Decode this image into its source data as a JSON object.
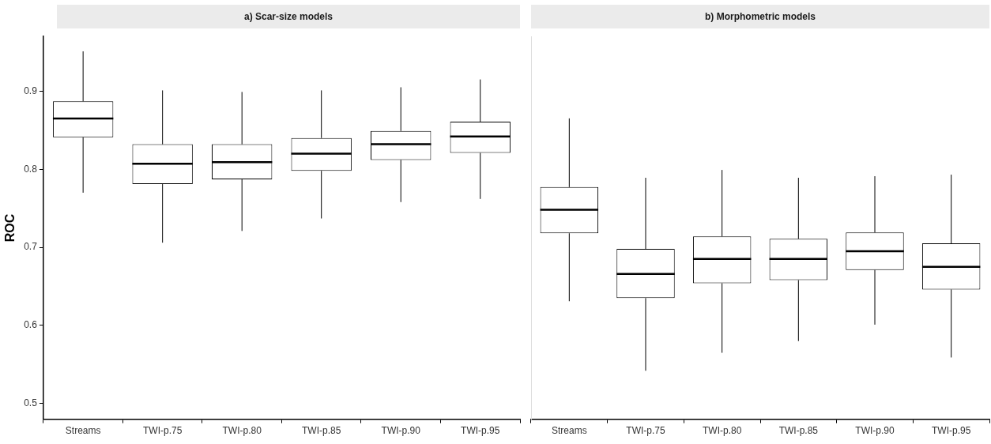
{
  "chart_data": [
    {
      "type": "box",
      "title": "a) Scar-size models",
      "ylabel": "ROC",
      "categories": [
        "Streams",
        "TWI-p.75",
        "TWI-p.80",
        "TWI-p.85",
        "TWI-p.90",
        "TWI-p.95"
      ],
      "color": "#000000",
      "grid": false,
      "ylim": [
        0.48,
        0.97
      ],
      "yticks": [
        0.5,
        0.6,
        0.7,
        0.8,
        0.9
      ],
      "boxes": [
        {
          "low": 0.77,
          "q1": 0.841,
          "median": 0.865,
          "q3": 0.887,
          "high": 0.951
        },
        {
          "low": 0.706,
          "q1": 0.781,
          "median": 0.807,
          "q3": 0.832,
          "high": 0.901
        },
        {
          "low": 0.721,
          "q1": 0.787,
          "median": 0.809,
          "q3": 0.832,
          "high": 0.899
        },
        {
          "low": 0.737,
          "q1": 0.798,
          "median": 0.82,
          "q3": 0.84,
          "high": 0.901
        },
        {
          "low": 0.758,
          "q1": 0.812,
          "median": 0.832,
          "q3": 0.849,
          "high": 0.905
        },
        {
          "low": 0.762,
          "q1": 0.821,
          "median": 0.842,
          "q3": 0.861,
          "high": 0.915
        }
      ]
    },
    {
      "type": "box",
      "title": "b) Morphometric models",
      "categories": [
        "Streams",
        "TWI-p.75",
        "TWI-p.80",
        "TWI-p.85",
        "TWI-p.90",
        "TWI-p.95"
      ],
      "color": "#000000",
      "grid": false,
      "ylim": [
        0.48,
        0.97
      ],
      "yticks": [
        0.5,
        0.6,
        0.7,
        0.8,
        0.9
      ],
      "tick_labels": "x",
      "boxes": [
        {
          "low": 0.631,
          "q1": 0.718,
          "median": 0.748,
          "q3": 0.777,
          "high": 0.865
        },
        {
          "low": 0.542,
          "q1": 0.635,
          "median": 0.666,
          "q3": 0.698,
          "high": 0.789
        },
        {
          "low": 0.565,
          "q1": 0.654,
          "median": 0.685,
          "q3": 0.714,
          "high": 0.799
        },
        {
          "low": 0.58,
          "q1": 0.658,
          "median": 0.685,
          "q3": 0.711,
          "high": 0.789
        },
        {
          "low": 0.601,
          "q1": 0.671,
          "median": 0.695,
          "q3": 0.719,
          "high": 0.791
        },
        {
          "low": 0.559,
          "q1": 0.646,
          "median": 0.675,
          "q3": 0.705,
          "high": 0.793
        }
      ]
    }
  ]
}
